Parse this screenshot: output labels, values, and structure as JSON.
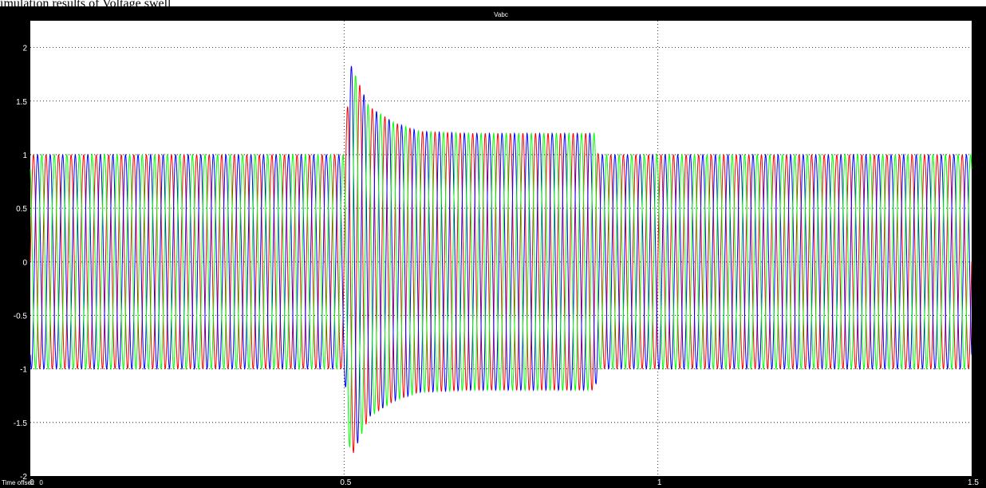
{
  "caption": "imulation results of Voltage swell",
  "scope": {
    "time_offset_label": "Time offset:",
    "time_offset_value": "0"
  },
  "colors": {
    "background": "#000000",
    "axes_area": "#ffffff",
    "grid": "#000000",
    "phase_a": "#ff0000",
    "phase_b": "#0000ff",
    "phase_c": "#00ff00"
  },
  "chart_data": {
    "type": "line",
    "title": "Vabc",
    "xlabel": "",
    "ylabel": "",
    "xlim": [
      0,
      1.5
    ],
    "ylim": [
      -2,
      2.25
    ],
    "xticks": [
      0,
      0.5,
      1,
      1.5
    ],
    "xtick_labels": [
      "0",
      "0.5",
      "1",
      "1.5"
    ],
    "yticks": [
      -2,
      -1.5,
      -1,
      -0.5,
      0,
      0.5,
      1,
      1.5,
      2
    ],
    "ytick_labels": [
      "-2",
      "-1.5",
      "-1",
      "-0.5",
      "0",
      "0.5",
      "1",
      "1.5",
      "2"
    ],
    "grid": true,
    "legend": "none",
    "frequency_hz": 50,
    "sample_step": 0.0005,
    "phase_shift_deg": [
      0,
      -120,
      120
    ],
    "series": [
      {
        "color": "#ff0000"
      },
      {
        "color": "#0000ff"
      },
      {
        "color": "#00ff00"
      }
    ],
    "amplitude_profile": [
      {
        "t": 0.0,
        "amplitude": 1.0
      },
      {
        "t": 0.5,
        "amplitude": 1.0
      },
      {
        "t": 0.51,
        "amplitude": 1.85
      },
      {
        "t": 0.54,
        "amplitude": 1.45
      },
      {
        "t": 0.58,
        "amplitude": 1.3
      },
      {
        "t": 0.62,
        "amplitude": 1.22
      },
      {
        "t": 0.7,
        "amplitude": 1.2
      },
      {
        "t": 0.9,
        "amplitude": 1.2
      },
      {
        "t": 0.905,
        "amplitude": 1.0
      },
      {
        "t": 1.5,
        "amplitude": 1.0
      }
    ]
  }
}
